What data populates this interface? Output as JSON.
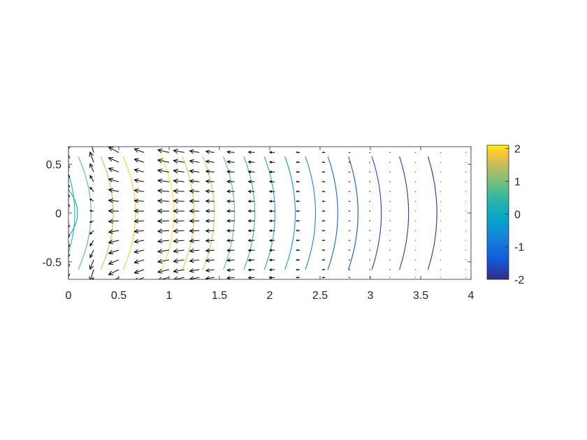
{
  "chart_data": {
    "type": "contour-quiver",
    "title": "",
    "xlabel": "",
    "ylabel": "",
    "xlim": [
      0,
      4
    ],
    "ylim": [
      -0.68,
      0.68
    ],
    "xticks": [
      0,
      0.5,
      1,
      1.5,
      2,
      2.5,
      3,
      3.5,
      4
    ],
    "xtick_labels": [
      "0",
      "0.5",
      "1",
      "1.5",
      "2",
      "2.5",
      "3",
      "3.5",
      "4"
    ],
    "yticks": [
      0.5,
      0,
      -0.5
    ],
    "ytick_labels": [
      "0.5",
      "0",
      "-0.5"
    ],
    "grid": false,
    "colormap": "parula",
    "colorbar": {
      "limits": [
        -2,
        2.1
      ],
      "ticks": [
        2,
        1,
        0,
        -1,
        -2
      ],
      "tick_labels": [
        "2",
        "1",
        "0",
        "-1",
        "-2"
      ]
    },
    "contour_levels": [
      {
        "x0": 0.12,
        "level": 0.3
      },
      {
        "x0": 0.28,
        "level": 0.8
      },
      {
        "x0": 0.5,
        "level": 1.6
      },
      {
        "x0": 0.72,
        "level": 1.9
      },
      {
        "x0": 1.1,
        "level": 2.0
      },
      {
        "x0": 1.3,
        "level": 1.85
      },
      {
        "x0": 1.5,
        "level": 1.65
      },
      {
        "x0": 1.7,
        "level": 0.9
      },
      {
        "x0": 1.9,
        "level": 0.5
      },
      {
        "x0": 2.1,
        "level": 0.1
      },
      {
        "x0": 2.3,
        "level": -0.2
      },
      {
        "x0": 2.5,
        "level": -0.6
      },
      {
        "x0": 2.72,
        "level": -1.2
      },
      {
        "x0": 2.92,
        "level": -1.5
      },
      {
        "x0": 3.15,
        "level": -1.7
      },
      {
        "x0": 3.42,
        "level": -1.85
      },
      {
        "x0": 3.7,
        "level": -1.95
      }
    ],
    "quiver": {
      "x": [
        0,
        0.25,
        0.5,
        0.75,
        1.0,
        1.15,
        1.3,
        1.45,
        1.65,
        1.85,
        2.05,
        2.3,
        2.55,
        2.8,
        3.0,
        3.2,
        3.45,
        3.7,
        3.95
      ],
      "y": [
        0.62,
        0.52,
        0.42,
        0.32,
        0.22,
        0.12,
        0.02,
        -0.08,
        -0.18,
        -0.28,
        -0.38,
        -0.48,
        -0.58,
        -0.66
      ],
      "u_scale": [
        0.05,
        0.32,
        0.9,
        0.85,
        1.0,
        0.95,
        0.85,
        0.75,
        0.65,
        0.55,
        0.45,
        0.3,
        0.22,
        0.15,
        0.1,
        0.08,
        0.06,
        0.05,
        0.05
      ],
      "v_scale": [
        3.0,
        2.0,
        0.9,
        0.6,
        0.45,
        0.35,
        0.28,
        0.2,
        0.12,
        0.08,
        0.05,
        0.03,
        0.02,
        0.01,
        0.0,
        0.0,
        0.0,
        0.0,
        0.0
      ]
    }
  }
}
